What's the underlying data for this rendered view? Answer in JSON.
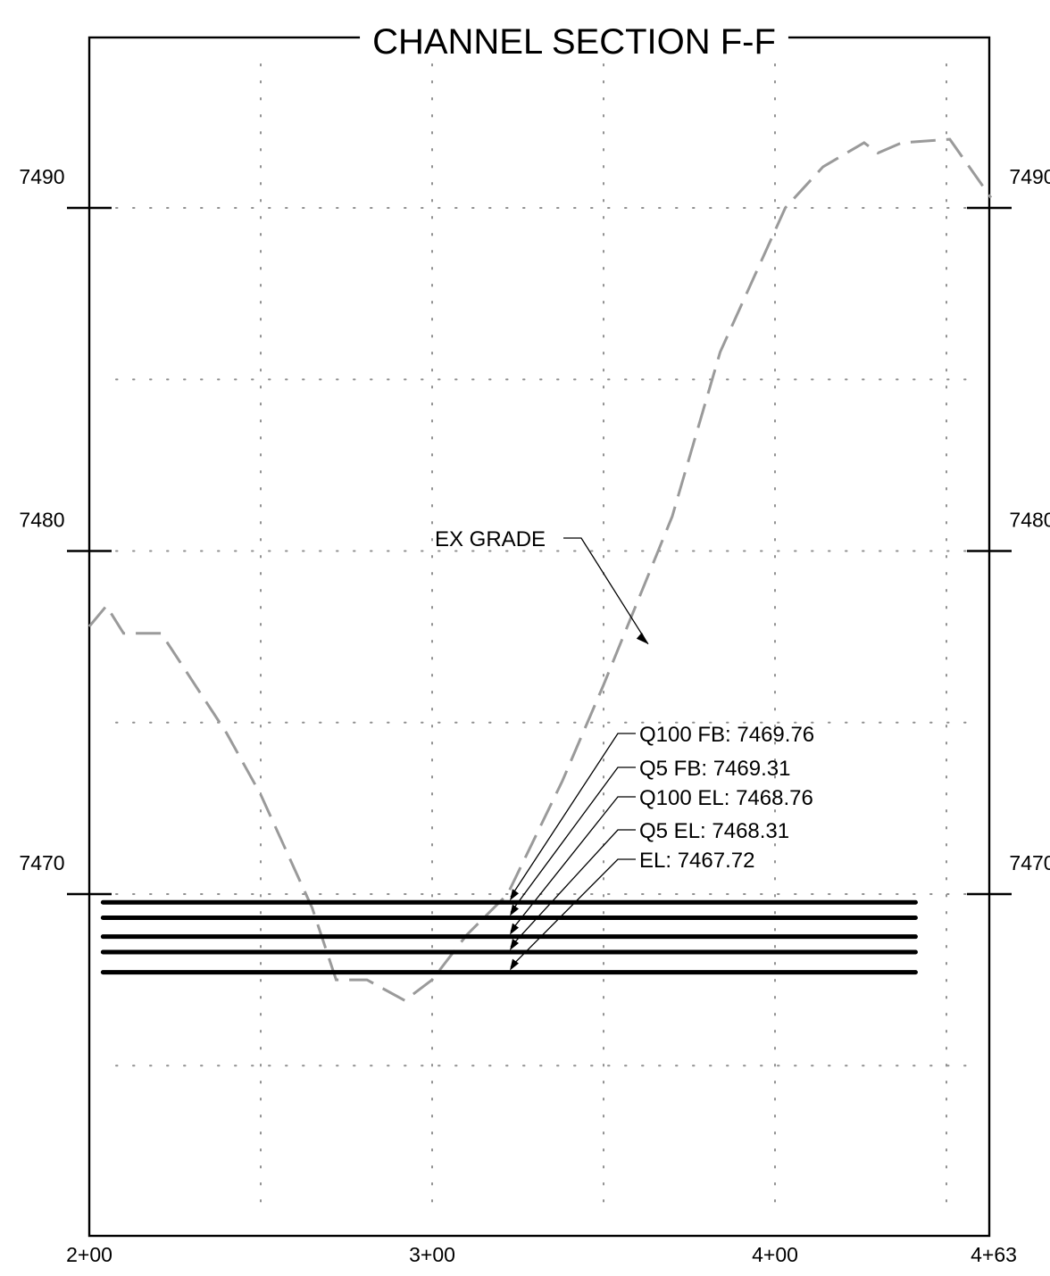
{
  "title": "CHANNEL SECTION F-F",
  "chart_data": {
    "type": "line",
    "title": "CHANNEL SECTION F-F",
    "xlabel": "",
    "ylabel": "",
    "x_ticks": [
      "2+00",
      "3+00",
      "4+00",
      "4+63"
    ],
    "y_ticks": [
      "7470",
      "7480",
      "7490"
    ],
    "xlim": [
      200,
      463
    ],
    "ylim": [
      7460,
      7493
    ],
    "grid": true,
    "series": [
      {
        "kind": "existing-grade",
        "stroke": "#9a9a9a",
        "x": [
          200,
          205,
          210,
          221,
          240,
          250,
          265,
          272,
          281,
          292,
          300,
          310,
          322,
          338,
          350,
          370,
          384,
          403,
          414,
          426,
          430,
          437,
          451,
          463
        ],
        "y": [
          7477.8,
          7478.4,
          7477.6,
          7477.6,
          7474.7,
          7472.9,
          7469.6,
          7467.5,
          7467.5,
          7466.9,
          7467.5,
          7468.8,
          7470.0,
          7473.3,
          7476.1,
          7481.0,
          7485.8,
          7490.0,
          7491.2,
          7491.9,
          7491.6,
          7491.9,
          7492.0,
          7490.3
        ]
      }
    ],
    "water_surfaces": [
      {
        "label": "Q100 FB: 7469.76",
        "y": 7469.76
      },
      {
        "label": "Q5 FB: 7469.31",
        "y": 7469.31
      },
      {
        "label": "Q100 EL: 7468.76",
        "y": 7468.76
      },
      {
        "label": "Q5 EL: 7468.31",
        "y": 7468.31
      },
      {
        "label": "EL: 7467.72",
        "y": 7467.72
      }
    ],
    "ws_x_range": [
      204,
      441
    ],
    "annotations": [
      {
        "label": "EX GRADE",
        "x": 357,
        "y": 7478.9
      }
    ]
  }
}
